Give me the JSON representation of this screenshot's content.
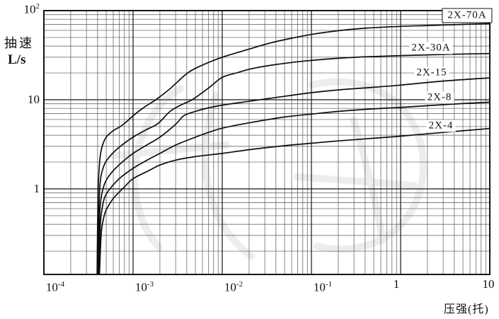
{
  "chart_data": {
    "type": "line",
    "title": "",
    "xlabel": "压强(托)",
    "ylabel_line1": "抽速",
    "ylabel_line2": "L/s",
    "x_scale": "log",
    "y_scale": "log",
    "x_range": [
      0.0001,
      10
    ],
    "y_range": [
      0.11,
      100
    ],
    "grid": true,
    "legend_position": "on-curve-right",
    "x_ticks": [
      {
        "text": "10",
        "exp": "-4",
        "value": 0.0001
      },
      {
        "text": "10",
        "exp": "-3",
        "value": 0.001
      },
      {
        "text": "10",
        "exp": "-2",
        "value": 0.01
      },
      {
        "text": "10",
        "exp": "-1",
        "value": 0.1
      },
      {
        "text": "1",
        "exp": "",
        "value": 1
      },
      {
        "text": "10",
        "exp": "",
        "value": 10
      }
    ],
    "y_ticks": [
      {
        "text": "10",
        "exp": "2",
        "value": 100
      },
      {
        "text": "10",
        "exp": "",
        "value": 10
      },
      {
        "text": "1",
        "exp": "",
        "value": 1
      }
    ],
    "series": [
      {
        "name": "2X-70A",
        "boxed": true,
        "points": [
          [
            0.000395,
            0.11
          ],
          [
            0.0004,
            0.4
          ],
          [
            0.000405,
            0.9
          ],
          [
            0.000415,
            1.6
          ],
          [
            0.00043,
            2.4
          ],
          [
            0.000455,
            3.1
          ],
          [
            0.0005,
            3.8
          ],
          [
            0.0006,
            4.5
          ],
          [
            0.00072,
            5.0
          ],
          [
            0.00085,
            5.7
          ],
          [
            0.001,
            6.6
          ],
          [
            0.0013,
            8.1
          ],
          [
            0.0018,
            10
          ],
          [
            0.0026,
            13.3
          ],
          [
            0.0041,
            20
          ],
          [
            0.006,
            24.5
          ],
          [
            0.01,
            30
          ],
          [
            0.02,
            37
          ],
          [
            0.035,
            43.5
          ],
          [
            0.06,
            49
          ],
          [
            0.1,
            54
          ],
          [
            0.2,
            59.5
          ],
          [
            0.4,
            63.5
          ],
          [
            1,
            66.5
          ],
          [
            2,
            68
          ],
          [
            5,
            70
          ],
          [
            10,
            71.5
          ]
        ]
      },
      {
        "name": "2X-30A",
        "boxed": false,
        "points": [
          [
            0.000405,
            0.11
          ],
          [
            0.00041,
            0.4
          ],
          [
            0.00042,
            0.9
          ],
          [
            0.000435,
            1.35
          ],
          [
            0.00046,
            1.7
          ],
          [
            0.0005,
            2.05
          ],
          [
            0.0006,
            2.55
          ],
          [
            0.00072,
            3.0
          ],
          [
            0.001,
            3.8
          ],
          [
            0.0014,
            4.6
          ],
          [
            0.0019,
            5.4
          ],
          [
            0.0026,
            7.4
          ],
          [
            0.0035,
            8.8
          ],
          [
            0.0046,
            10
          ],
          [
            0.007,
            13.5
          ],
          [
            0.01,
            17.8
          ],
          [
            0.015,
            20.2
          ],
          [
            0.02,
            22
          ],
          [
            0.03,
            23.8
          ],
          [
            0.06,
            26.2
          ],
          [
            0.1,
            27.6
          ],
          [
            0.2,
            29.2
          ],
          [
            0.4,
            30.3
          ],
          [
            1,
            31.3
          ],
          [
            3,
            32.2
          ],
          [
            10,
            33
          ]
        ]
      },
      {
        "name": "2X-15",
        "boxed": false,
        "points": [
          [
            0.00041,
            0.11
          ],
          [
            0.00042,
            0.45
          ],
          [
            0.000435,
            0.75
          ],
          [
            0.00046,
            1.0
          ],
          [
            0.0005,
            1.25
          ],
          [
            0.0006,
            1.6
          ],
          [
            0.0008,
            2.1
          ],
          [
            0.001,
            2.5
          ],
          [
            0.0015,
            3.2
          ],
          [
            0.002,
            3.8
          ],
          [
            0.003,
            5.3
          ],
          [
            0.0037,
            6.6
          ],
          [
            0.005,
            7.4
          ],
          [
            0.007,
            8.1
          ],
          [
            0.01,
            8.7
          ],
          [
            0.02,
            9.6
          ],
          [
            0.04,
            10.6
          ],
          [
            0.1,
            12
          ],
          [
            0.2,
            12.9
          ],
          [
            0.5,
            13.8
          ],
          [
            1,
            14.6
          ],
          [
            3,
            16.2
          ],
          [
            10,
            17.6
          ]
        ]
      },
      {
        "name": "2X-8",
        "boxed": false,
        "points": [
          [
            0.000415,
            0.11
          ],
          [
            0.00043,
            0.4
          ],
          [
            0.00045,
            0.6
          ],
          [
            0.00048,
            0.8
          ],
          [
            0.00055,
            1.0
          ],
          [
            0.0007,
            1.3
          ],
          [
            0.001,
            1.7
          ],
          [
            0.0015,
            2.15
          ],
          [
            0.002,
            2.5
          ],
          [
            0.003,
            3.1
          ],
          [
            0.005,
            3.8
          ],
          [
            0.007,
            4.3
          ],
          [
            0.01,
            4.8
          ],
          [
            0.02,
            5.5
          ],
          [
            0.05,
            6.4
          ],
          [
            0.1,
            6.9
          ],
          [
            0.2,
            7.4
          ],
          [
            0.5,
            7.9
          ],
          [
            1,
            8.2
          ],
          [
            3,
            8.8
          ],
          [
            10,
            9.4
          ]
        ]
      },
      {
        "name": "2X-4",
        "boxed": false,
        "points": [
          [
            0.00042,
            0.11
          ],
          [
            0.00044,
            0.32
          ],
          [
            0.00047,
            0.48
          ],
          [
            0.0005,
            0.58
          ],
          [
            0.0006,
            0.78
          ],
          [
            0.0008,
            1.05
          ],
          [
            0.001,
            1.3
          ],
          [
            0.0015,
            1.6
          ],
          [
            0.002,
            1.85
          ],
          [
            0.003,
            2.1
          ],
          [
            0.005,
            2.3
          ],
          [
            0.01,
            2.5
          ],
          [
            0.02,
            2.75
          ],
          [
            0.05,
            3.05
          ],
          [
            0.1,
            3.25
          ],
          [
            0.2,
            3.45
          ],
          [
            0.5,
            3.7
          ],
          [
            1,
            3.9
          ],
          [
            3,
            4.3
          ],
          [
            10,
            4.75
          ]
        ]
      }
    ]
  }
}
